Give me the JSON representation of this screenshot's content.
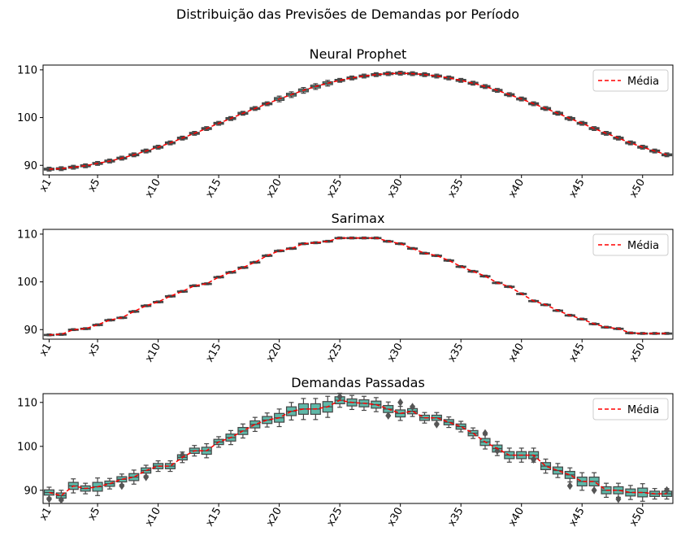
{
  "figure": {
    "suptitle": "Distribuição das Previsões de Demandas por Período"
  },
  "chart_data": [
    {
      "type": "box",
      "title": "Neural Prophet",
      "categories": [
        "x1",
        "x2",
        "x3",
        "x4",
        "x5",
        "x6",
        "x7",
        "x8",
        "x9",
        "x10",
        "x11",
        "x12",
        "x13",
        "x14",
        "x15",
        "x16",
        "x17",
        "x18",
        "x19",
        "x20",
        "x21",
        "x22",
        "x23",
        "x24",
        "x25",
        "x26",
        "x27",
        "x28",
        "x29",
        "x30",
        "x31",
        "x32",
        "x33",
        "x34",
        "x35",
        "x36",
        "x37",
        "x38",
        "x39",
        "x40",
        "x41",
        "x42",
        "x43",
        "x44",
        "x45",
        "x46",
        "x47",
        "x48",
        "x49",
        "x50",
        "x51",
        "x52"
      ],
      "tick_labels": [
        "x1",
        "x5",
        "x10",
        "x15",
        "x20",
        "x25",
        "x30",
        "x35",
        "x40",
        "x45",
        "x50"
      ],
      "yticks": [
        90,
        100,
        110
      ],
      "ylim": [
        88,
        111
      ],
      "mean": [
        89.2,
        89.3,
        89.6,
        89.9,
        90.4,
        90.9,
        91.5,
        92.2,
        93.0,
        93.8,
        94.7,
        95.7,
        96.7,
        97.7,
        98.8,
        99.8,
        100.9,
        101.9,
        102.9,
        103.9,
        104.8,
        105.7,
        106.5,
        107.2,
        107.8,
        108.3,
        108.7,
        109.0,
        109.2,
        109.3,
        109.2,
        109.0,
        108.7,
        108.3,
        107.8,
        107.2,
        106.5,
        105.7,
        104.8,
        103.9,
        102.9,
        101.9,
        100.9,
        99.8,
        98.8,
        97.7,
        96.7,
        95.7,
        94.7,
        93.8,
        93.0,
        92.2
      ],
      "box_spread": [
        0.2,
        0.2,
        0.2,
        0.2,
        0.2,
        0.2,
        0.2,
        0.2,
        0.2,
        0.2,
        0.2,
        0.2,
        0.2,
        0.2,
        0.2,
        0.2,
        0.2,
        0.2,
        0.2,
        0.3,
        0.3,
        0.3,
        0.3,
        0.3,
        0.2,
        0.2,
        0.2,
        0.2,
        0.2,
        0.2,
        0.2,
        0.2,
        0.2,
        0.2,
        0.2,
        0.2,
        0.2,
        0.2,
        0.2,
        0.2,
        0.2,
        0.2,
        0.2,
        0.2,
        0.2,
        0.2,
        0.2,
        0.2,
        0.2,
        0.2,
        0.2,
        0.2
      ],
      "outliers": [],
      "legend": {
        "label": "Média",
        "position": "top-right"
      },
      "series_color": "#5fb8a8",
      "mean_color": "#ff0000"
    },
    {
      "type": "box",
      "title": "Sarimax",
      "categories": [
        "x1",
        "x2",
        "x3",
        "x4",
        "x5",
        "x6",
        "x7",
        "x8",
        "x9",
        "x10",
        "x11",
        "x12",
        "x13",
        "x14",
        "x15",
        "x16",
        "x17",
        "x18",
        "x19",
        "x20",
        "x21",
        "x22",
        "x23",
        "x24",
        "x25",
        "x26",
        "x27",
        "x28",
        "x29",
        "x30",
        "x31",
        "x32",
        "x33",
        "x34",
        "x35",
        "x36",
        "x37",
        "x38",
        "x39",
        "x40",
        "x41",
        "x42",
        "x43",
        "x44",
        "x45",
        "x46",
        "x47",
        "x48",
        "x49",
        "x50",
        "x51",
        "x52"
      ],
      "tick_labels": [
        "x1",
        "x5",
        "x10",
        "x15",
        "x20",
        "x25",
        "x30",
        "x35",
        "x40",
        "x45",
        "x50"
      ],
      "yticks": [
        90,
        100,
        110
      ],
      "ylim": [
        88,
        111
      ],
      "mean": [
        88.9,
        89.0,
        90.0,
        90.2,
        91.0,
        92.0,
        92.5,
        93.8,
        95.0,
        95.8,
        97.0,
        98.0,
        99.2,
        99.6,
        101.0,
        102.0,
        103.0,
        104.1,
        105.5,
        106.5,
        107.0,
        108.0,
        108.2,
        108.5,
        109.2,
        109.2,
        109.2,
        109.2,
        108.5,
        108.0,
        107.0,
        106.0,
        105.5,
        104.5,
        103.2,
        102.2,
        101.2,
        99.8,
        99.0,
        97.5,
        96.0,
        95.2,
        94.0,
        93.0,
        92.2,
        91.2,
        90.5,
        90.2,
        89.3,
        89.2,
        89.2,
        89.2
      ],
      "box_spread": [
        0.1,
        0.1,
        0.1,
        0.1,
        0.1,
        0.1,
        0.1,
        0.1,
        0.1,
        0.1,
        0.1,
        0.1,
        0.1,
        0.1,
        0.1,
        0.1,
        0.1,
        0.1,
        0.1,
        0.1,
        0.1,
        0.1,
        0.1,
        0.1,
        0.1,
        0.1,
        0.1,
        0.1,
        0.1,
        0.1,
        0.1,
        0.1,
        0.1,
        0.1,
        0.1,
        0.1,
        0.1,
        0.1,
        0.1,
        0.1,
        0.1,
        0.1,
        0.1,
        0.1,
        0.1,
        0.1,
        0.1,
        0.1,
        0.1,
        0.1,
        0.1,
        0.1
      ],
      "outliers": [],
      "legend": {
        "label": "Média",
        "position": "top-right"
      },
      "series_color": "#5fb8a8",
      "mean_color": "#ff0000"
    },
    {
      "type": "box",
      "title": "Demandas Passadas",
      "categories": [
        "x1",
        "x2",
        "x3",
        "x4",
        "x5",
        "x6",
        "x7",
        "x8",
        "x9",
        "x10",
        "x11",
        "x12",
        "x13",
        "x14",
        "x15",
        "x16",
        "x17",
        "x18",
        "x19",
        "x20",
        "x21",
        "x22",
        "x23",
        "x24",
        "x25",
        "x26",
        "x27",
        "x28",
        "x29",
        "x30",
        "x31",
        "x32",
        "x33",
        "x34",
        "x35",
        "x36",
        "x37",
        "x38",
        "x39",
        "x40",
        "x41",
        "x42",
        "x43",
        "x44",
        "x45",
        "x46",
        "x47",
        "x48",
        "x49",
        "x50",
        "x51",
        "x52"
      ],
      "tick_labels": [
        "x1",
        "x5",
        "x10",
        "x15",
        "x20",
        "x25",
        "x30",
        "x35",
        "x40",
        "x45",
        "x50"
      ],
      "yticks": [
        90,
        100,
        110
      ],
      "ylim": [
        87,
        112
      ],
      "mean": [
        89.5,
        88.8,
        91.0,
        90.4,
        90.8,
        91.5,
        92.5,
        93.0,
        94.5,
        95.5,
        95.5,
        97.5,
        99.0,
        99.0,
        101.0,
        102.0,
        103.5,
        105.0,
        106.0,
        106.5,
        108.0,
        108.5,
        108.5,
        109.0,
        110.5,
        110.0,
        109.8,
        109.5,
        108.5,
        107.5,
        108.0,
        106.5,
        106.5,
        105.5,
        104.5,
        103.0,
        101.0,
        99.5,
        98.0,
        98.0,
        98.0,
        95.5,
        94.5,
        93.5,
        92.0,
        92.0,
        90.0,
        90.0,
        89.5,
        89.5,
        89.2,
        89.2
      ],
      "box_spread": [
        0.6,
        0.6,
        0.8,
        0.6,
        1.0,
        0.6,
        0.6,
        0.8,
        0.6,
        0.6,
        0.6,
        0.6,
        0.6,
        0.8,
        0.6,
        0.8,
        0.8,
        0.8,
        0.8,
        1.0,
        1.0,
        1.2,
        1.2,
        1.2,
        0.8,
        0.8,
        0.8,
        0.8,
        0.8,
        0.8,
        0.6,
        0.6,
        0.6,
        0.6,
        0.6,
        0.6,
        0.8,
        0.8,
        0.8,
        0.8,
        0.8,
        0.8,
        0.8,
        0.8,
        1.0,
        1.0,
        0.8,
        0.8,
        0.8,
        1.0,
        0.6,
        0.6
      ],
      "outliers": [
        [
          1,
          88.0
        ],
        [
          2,
          87.8
        ],
        [
          7,
          91.0
        ],
        [
          9,
          93.0
        ],
        [
          12,
          98.0
        ],
        [
          25,
          111.3
        ],
        [
          29,
          107.0
        ],
        [
          30,
          110.0
        ],
        [
          31,
          109.0
        ],
        [
          33,
          105.0
        ],
        [
          37,
          103.0
        ],
        [
          38,
          99.0
        ],
        [
          41,
          97.0
        ],
        [
          44,
          91.0
        ],
        [
          46,
          90.0
        ],
        [
          48,
          88.0
        ],
        [
          52,
          90.0
        ]
      ],
      "legend": {
        "label": "Média",
        "position": "top-right"
      },
      "series_color": "#5fb8a8",
      "mean_color": "#ff0000"
    }
  ]
}
